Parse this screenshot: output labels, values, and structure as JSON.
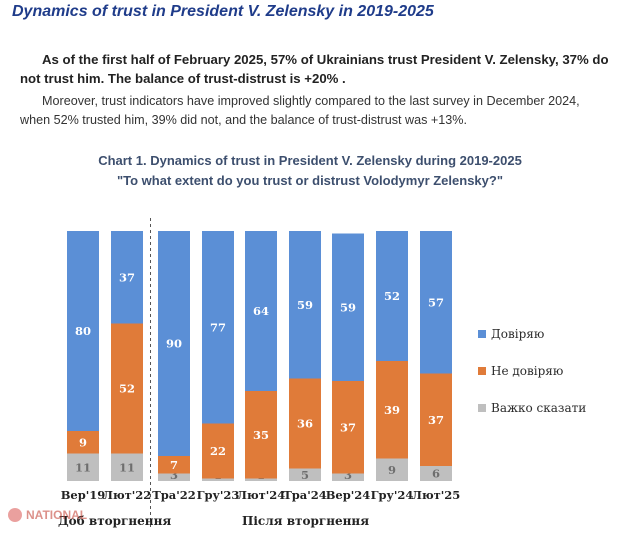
{
  "heading": "Dynamics of trust in President V. Zelensky in 2019-2025",
  "paragraph1": "As of the first half of February 2025, 57% of Ukrainians trust President V. Zelensky, 37% do not trust him. The balance of trust-distrust is +20% .",
  "paragraph2": "Moreover, trust indicators have improved slightly compared to the last survey in December 2024, when 52% trusted him, 39% did not, and the balance of trust-distrust was +13%.",
  "colors": {
    "trust": "#5b8fd6",
    "distrust": "#e07b39",
    "hard_to_say": "#bfbfbf"
  },
  "periods": {
    "before": "Доб вторгнення",
    "after": "Після вторгнення"
  },
  "watermark": "NATIONAL",
  "chart_data": {
    "type": "bar",
    "stacked": true,
    "title": "Chart 1. Dynamics of trust in President V. Zelensky during 2019-2025",
    "subtitle": "\"To what extent do you trust or distrust Volodymyr Zelensky?\"",
    "categories": [
      "Вер'19",
      "Лют'22",
      "Тра'22",
      "Гру'23",
      "Лют'24",
      "Тра'24",
      "Вер'24",
      "Гру'24",
      "Лют'25"
    ],
    "series": [
      {
        "name": "Важко сказати",
        "values": [
          11,
          11,
          3,
          1,
          1,
          5,
          3,
          9,
          6
        ]
      },
      {
        "name": "Не довіряю",
        "values": [
          9,
          52,
          7,
          22,
          35,
          36,
          37,
          39,
          37
        ]
      },
      {
        "name": "Довіряю",
        "values": [
          80,
          37,
          90,
          77,
          64,
          59,
          59,
          52,
          57
        ]
      }
    ],
    "ylim": [
      0,
      100
    ],
    "legend_position": "right",
    "divider_after_index": 1
  }
}
